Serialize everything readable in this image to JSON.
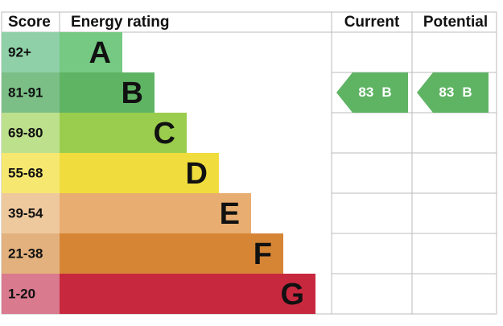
{
  "header": {
    "score": "Score",
    "rating": "Energy rating",
    "current": "Current",
    "potential": "Potential"
  },
  "rows": [
    {
      "score": "92+",
      "band": "A",
      "color": "#75c982",
      "score_color": "#8fd0a8"
    },
    {
      "score": "81-91",
      "band": "B",
      "color": "#5fb464",
      "score_color": "#7bbf86"
    },
    {
      "score": "69-80",
      "band": "C",
      "color": "#9acd4e",
      "score_color": "#bde08c"
    },
    {
      "score": "55-68",
      "band": "D",
      "color": "#f0dc3c",
      "score_color": "#f6e770"
    },
    {
      "score": "39-54",
      "band": "E",
      "color": "#e8ad70",
      "score_color": "#efc99e"
    },
    {
      "score": "21-38",
      "band": "F",
      "color": "#d68535",
      "score_color": "#e3b17d"
    },
    {
      "score": "1-20",
      "band": "G",
      "color": "#c8283e",
      "score_color": "#d97a8e"
    }
  ],
  "current": {
    "value": 83,
    "band": "B",
    "row": 1
  },
  "potential": {
    "value": 83,
    "band": "B",
    "row": 1
  }
}
